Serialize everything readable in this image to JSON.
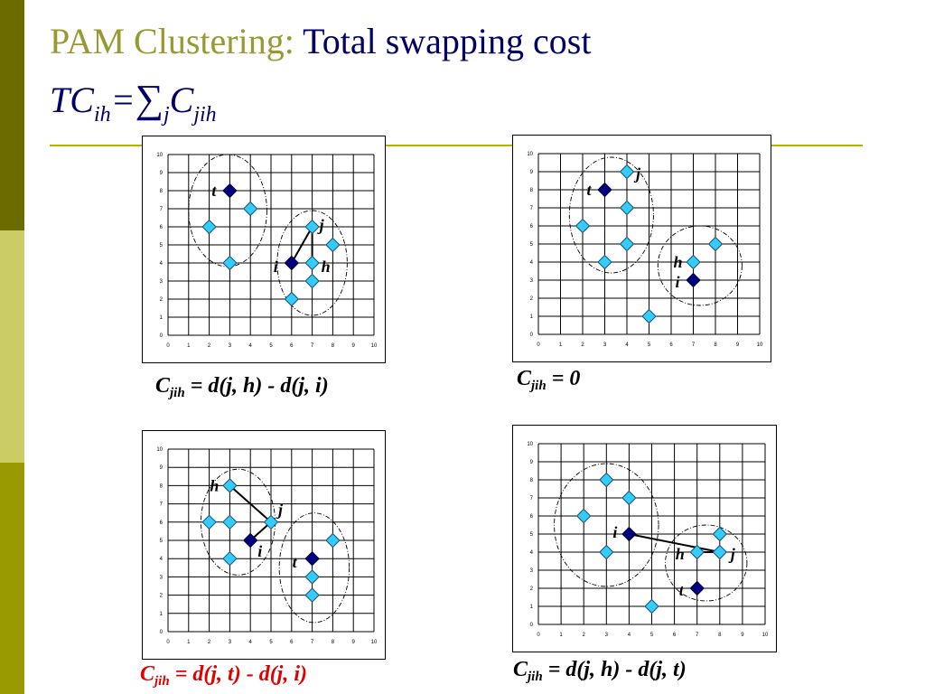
{
  "slide": {
    "title_lead": "PAM Clustering:",
    "title_rest": " Total swapping cost",
    "formula": {
      "tc": "TC",
      "tc_sub": "ih",
      "eq": "=",
      "sigma": "∑",
      "sigma_sub": "j",
      "c": "C",
      "c_sub": "jih"
    }
  },
  "colors": {
    "accent": "#999933",
    "title": "#000066",
    "light_point": "#33ccff",
    "dark_point": "#000080",
    "red_caption": "#e00000"
  },
  "icons": {
    "medoid": "dark-diamond",
    "object": "light-diamond"
  },
  "chart_data": [
    {
      "type": "scatter",
      "panel": "top-left",
      "xlim": [
        0,
        10
      ],
      "ylim": [
        0,
        10
      ],
      "xticks": [
        "0",
        "1",
        "2",
        "3",
        "4",
        "5",
        "6",
        "7",
        "8",
        "9",
        "10"
      ],
      "yticks": [
        "0",
        "1",
        "2",
        "3",
        "4",
        "5",
        "6",
        "7",
        "8",
        "9",
        "10"
      ],
      "grid": true,
      "objects": [
        [
          2,
          6
        ],
        [
          3,
          4
        ],
        [
          4,
          7
        ],
        [
          7,
          6
        ],
        [
          8,
          5
        ],
        [
          7,
          4
        ],
        [
          7,
          3
        ],
        [
          6,
          2
        ]
      ],
      "medoids": [
        [
          3,
          8
        ],
        [
          6,
          4
        ]
      ],
      "labels": [
        {
          "text": "t",
          "x": 3,
          "y": 8
        },
        {
          "text": "j",
          "x": 7,
          "y": 6
        },
        {
          "text": "i",
          "x": 6,
          "y": 4
        },
        {
          "text": "h",
          "x": 7,
          "y": 4
        }
      ],
      "clusters": [
        {
          "cx": 2.9,
          "cy": 6.9,
          "rx": 1.9,
          "ry": 3.1
        },
        {
          "cx": 7.0,
          "cy": 4.0,
          "rx": 1.7,
          "ry": 2.9
        }
      ],
      "lines": [
        [
          [
            6,
            4
          ],
          [
            7,
            6
          ]
        ],
        [
          [
            7,
            6
          ],
          [
            7,
            4
          ]
        ]
      ]
    },
    {
      "type": "scatter",
      "panel": "top-right",
      "xlim": [
        0,
        10
      ],
      "ylim": [
        0,
        10
      ],
      "xticks": [
        "0",
        "1",
        "2",
        "3",
        "4",
        "5",
        "6",
        "7",
        "8",
        "9",
        "10"
      ],
      "yticks": [
        "0",
        "1",
        "2",
        "3",
        "4",
        "5",
        "6",
        "7",
        "8",
        "9",
        "10"
      ],
      "grid": true,
      "objects": [
        [
          4,
          9
        ],
        [
          4,
          7
        ],
        [
          2,
          6
        ],
        [
          4,
          5
        ],
        [
          3,
          4
        ],
        [
          7,
          4
        ],
        [
          8,
          5
        ],
        [
          5,
          1
        ]
      ],
      "medoids": [
        [
          3,
          8
        ],
        [
          7,
          3
        ]
      ],
      "labels": [
        {
          "text": "j",
          "x": 4,
          "y": 9
        },
        {
          "text": "t",
          "x": 3,
          "y": 8
        },
        {
          "text": "h",
          "x": 7,
          "y": 4
        },
        {
          "text": "i",
          "x": 7,
          "y": 3
        }
      ],
      "clusters": [
        {
          "cx": 3.3,
          "cy": 6.6,
          "rx": 1.9,
          "ry": 3.2
        },
        {
          "cx": 7.3,
          "cy": 3.8,
          "rx": 1.9,
          "ry": 2.2
        }
      ],
      "lines": []
    },
    {
      "type": "scatter",
      "panel": "bottom-left",
      "xlim": [
        0,
        10
      ],
      "ylim": [
        0,
        10
      ],
      "xticks": [
        "0",
        "1",
        "2",
        "3",
        "4",
        "5",
        "6",
        "7",
        "8",
        "9",
        "10"
      ],
      "yticks": [
        "0",
        "1",
        "2",
        "3",
        "4",
        "5",
        "6",
        "7",
        "8",
        "9",
        "10"
      ],
      "grid": true,
      "objects": [
        [
          3,
          8
        ],
        [
          2,
          6
        ],
        [
          3,
          6
        ],
        [
          5,
          6
        ],
        [
          3,
          4
        ],
        [
          8,
          5
        ],
        [
          7,
          3
        ],
        [
          7,
          2
        ]
      ],
      "medoids": [
        [
          4,
          5
        ],
        [
          7,
          4
        ]
      ],
      "labels": [
        {
          "text": "h",
          "x": 3,
          "y": 8
        },
        {
          "text": "j",
          "x": 5,
          "y": 6
        },
        {
          "text": "i",
          "x": 4,
          "y": 5
        },
        {
          "text": "t",
          "x": 7,
          "y": 4
        }
      ],
      "clusters": [
        {
          "cx": 3.4,
          "cy": 6.0,
          "rx": 1.8,
          "ry": 2.9
        },
        {
          "cx": 7.1,
          "cy": 3.5,
          "rx": 1.7,
          "ry": 3.0
        }
      ],
      "lines": [
        [
          [
            3,
            8
          ],
          [
            5,
            6
          ]
        ],
        [
          [
            5,
            6
          ],
          [
            4,
            5
          ]
        ]
      ]
    },
    {
      "type": "scatter",
      "panel": "bottom-right",
      "xlim": [
        0,
        10
      ],
      "ylim": [
        0,
        10
      ],
      "xticks": [
        "0",
        "1",
        "2",
        "3",
        "4",
        "5",
        "6",
        "7",
        "8",
        "9",
        "10"
      ],
      "yticks": [
        "0",
        "1",
        "2",
        "3",
        "4",
        "5",
        "6",
        "7",
        "8",
        "9",
        "10"
      ],
      "grid": true,
      "objects": [
        [
          3,
          8
        ],
        [
          4,
          7
        ],
        [
          2,
          6
        ],
        [
          3,
          4
        ],
        [
          7,
          4
        ],
        [
          8,
          4
        ],
        [
          8,
          5
        ],
        [
          5,
          1
        ]
      ],
      "medoids": [
        [
          4,
          5
        ],
        [
          7,
          2
        ]
      ],
      "labels": [
        {
          "text": "i",
          "x": 4,
          "y": 5
        },
        {
          "text": "h",
          "x": 7,
          "y": 4
        },
        {
          "text": "j",
          "x": 8,
          "y": 4
        },
        {
          "text": "t",
          "x": 7,
          "y": 2
        }
      ],
      "clusters": [
        {
          "cx": 3.0,
          "cy": 5.5,
          "rx": 2.3,
          "ry": 3.4
        },
        {
          "cx": 7.4,
          "cy": 3.4,
          "rx": 1.8,
          "ry": 2.1
        }
      ],
      "lines": [
        [
          [
            4,
            5
          ],
          [
            8,
            4
          ]
        ],
        [
          [
            7,
            4
          ],
          [
            8,
            4
          ]
        ]
      ]
    }
  ],
  "captions": [
    {
      "c": "C",
      "sub": "jih",
      "rest": " = d(j, h) - d(j, i)"
    },
    {
      "c": "C",
      "sub": "jih",
      "rest": " = 0"
    },
    {
      "c": "C",
      "sub": "jih",
      "rest": " = d(j, t) - d(j, i)"
    },
    {
      "c": "C",
      "sub": "jih",
      "rest": " = d(j, h) - d(j, t)"
    }
  ]
}
